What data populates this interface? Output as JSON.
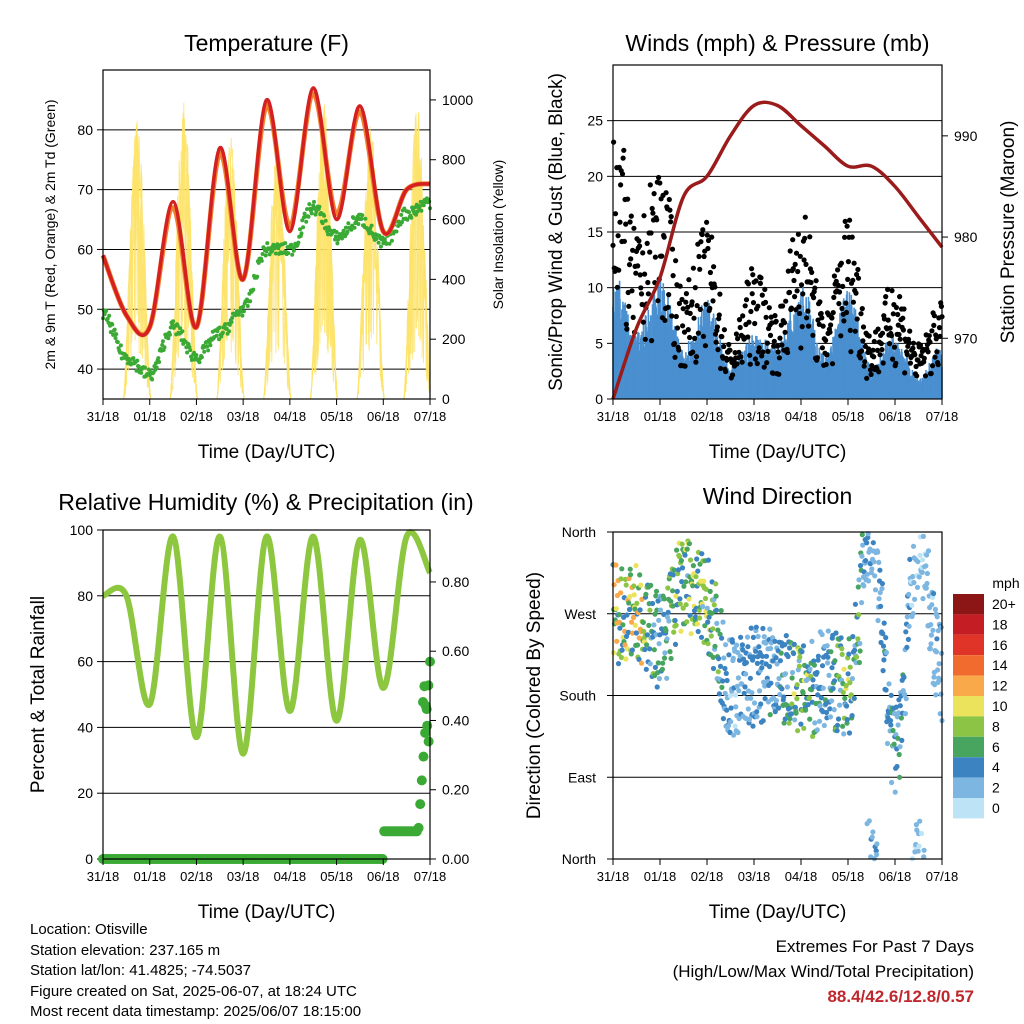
{
  "x_tick_labels": [
    "31/18",
    "01/18",
    "02/18",
    "03/18",
    "04/18",
    "05/18",
    "06/18",
    "07/18"
  ],
  "panels": {
    "temperature": {
      "title": "Temperature (F)",
      "xlabel": "Time (Day/UTC)",
      "ylabel_left": "2m & 9m T (Red, Orange) & 2m Td (Green)",
      "ylabel_right": "Solar Insolation (Yellow)",
      "left_ticks": [
        40,
        50,
        60,
        70,
        80
      ],
      "right_ticks": [
        0,
        200,
        400,
        600,
        800,
        1000
      ]
    },
    "winds": {
      "title": "Winds (mph) & Pressure (mb)",
      "xlabel": "Time (Day/UTC)",
      "ylabel_left": "Sonic/Prop Wind & Gust (Blue, Black)",
      "ylabel_right": "Station Pressure (Maroon)",
      "left_ticks": [
        0,
        5,
        10,
        15,
        20,
        25
      ],
      "right_ticks": [
        970,
        980,
        990
      ]
    },
    "humidity": {
      "title": "Relative Humidity (%) & Precipitation (in)",
      "xlabel": "Time (Day/UTC)",
      "ylabel_left": "Percent & Total Rainfall",
      "left_ticks": [
        0,
        20,
        40,
        60,
        80,
        100
      ],
      "right_ticks": [
        "0.00",
        "0.20",
        "0.40",
        "0.60",
        "0.80"
      ]
    },
    "direction": {
      "title": "Wind Direction",
      "xlabel": "Time (Day/UTC)",
      "ylabel_left": "Direction (Colored By Speed)",
      "direction_ticks": [
        "North",
        "East",
        "South",
        "West",
        "North"
      ],
      "legend_title": "mph",
      "legend_labels": [
        "20+",
        "18",
        "16",
        "14",
        "12",
        "10",
        "8",
        "6",
        "4",
        "2",
        "0"
      ],
      "legend_colors": [
        "#8c1515",
        "#c41e24",
        "#e03428",
        "#f26b2e",
        "#f9a84a",
        "#ece35c",
        "#8cc545",
        "#48a560",
        "#3c83c2",
        "#7db7e1",
        "#bde4f6"
      ]
    }
  },
  "colors": {
    "temp_2m": "#d42020",
    "temp_9m": "#f08030",
    "dewpoint": "#3aaa35",
    "insolation": "#fde36a",
    "wind_sonic": "#4a90d0",
    "gust": "#000000",
    "pressure": "#9b1b1b",
    "rh": "#8dc63f",
    "precip": "#3aaa35"
  },
  "chart_data": [
    {
      "type": "line",
      "title": "Temperature (F)",
      "xlabel": "Time (Day/UTC)",
      "x": [
        0,
        0.5,
        1,
        1.5,
        2,
        2.5,
        3,
        3.5,
        4,
        4.5,
        5,
        5.5,
        6,
        6.5,
        7
      ],
      "x_units": "days since 31/18 UTC",
      "ylim": [
        35,
        90
      ],
      "y2lim": [
        0,
        1100
      ],
      "series": [
        {
          "name": "2m T (Red)",
          "values": [
            59,
            49,
            47,
            68,
            47,
            77,
            55,
            85,
            63,
            87,
            65,
            84,
            63,
            70,
            71
          ]
        },
        {
          "name": "9m T (Orange)",
          "values": [
            59,
            49,
            47,
            67,
            47,
            76,
            55,
            84,
            64,
            86,
            66,
            83,
            63,
            70,
            71
          ]
        },
        {
          "name": "2m Td (Green)",
          "values": [
            49,
            42,
            39,
            47,
            42,
            46,
            50,
            60,
            60,
            67,
            62,
            65,
            61,
            66,
            68
          ]
        },
        {
          "name": "Solar Insolation (Yellow)",
          "axis": "right",
          "peaks": [
            950,
            1000,
            880,
            880,
            1000,
            920,
            1000,
            350
          ]
        }
      ]
    },
    {
      "type": "scatter",
      "title": "Winds (mph) & Pressure (mb)",
      "xlabel": "Time (Day/UTC)",
      "x": [
        0,
        0.5,
        1,
        1.5,
        2,
        2.5,
        3,
        3.5,
        4,
        4.5,
        5,
        5.5,
        6,
        6.5,
        7
      ],
      "ylim": [
        0,
        30
      ],
      "y2lim": [
        964,
        997
      ],
      "series": [
        {
          "name": "Gust (Black) peak",
          "values": [
            28,
            15,
            22,
            10,
            16,
            5,
            12,
            8,
            18,
            8,
            17,
            6,
            11,
            5,
            9
          ]
        },
        {
          "name": "Sonic/Prop Wind (Blue) peak",
          "values": [
            12,
            6,
            11,
            5,
            9,
            3,
            6,
            5,
            11,
            4,
            10,
            3,
            6,
            2,
            5
          ]
        },
        {
          "name": "Station Pressure (Maroon)",
          "axis": "right",
          "values": [
            964,
            971,
            976,
            984,
            986,
            990,
            993,
            993,
            991,
            989,
            987,
            987,
            985,
            982,
            979
          ]
        }
      ]
    },
    {
      "type": "line",
      "title": "Relative Humidity (%) & Precipitation (in)",
      "xlabel": "Time (Day/UTC)",
      "x": [
        0,
        0.5,
        1,
        1.5,
        2,
        2.5,
        3,
        3.5,
        4,
        4.5,
        5,
        5.5,
        6,
        6.5,
        7
      ],
      "ylim": [
        0,
        100
      ],
      "y2lim": [
        0,
        0.95
      ],
      "series": [
        {
          "name": "Relative Humidity (%)",
          "values": [
            80,
            80,
            47,
            98,
            37,
            98,
            32,
            98,
            45,
            98,
            42,
            97,
            52,
            98,
            87
          ]
        },
        {
          "name": "Total Precipitation (in)",
          "axis": "right",
          "values": [
            0,
            0,
            0,
            0,
            0,
            0,
            0,
            0,
            0,
            0,
            0,
            0,
            0.08,
            0.08,
            0.57
          ]
        }
      ]
    },
    {
      "type": "scatter",
      "title": "Wind Direction",
      "xlabel": "Time (Day/UTC)",
      "ylabel": "Direction (Colored By Speed)",
      "x": [
        0,
        0.5,
        1,
        1.5,
        2,
        2.5,
        3,
        3.5,
        4,
        4.5,
        5,
        5.5,
        6,
        6.5,
        7
      ],
      "ylim": [
        0,
        360
      ],
      "series": [
        {
          "name": "Direction (degrees)",
          "values": [
            270,
            270,
            240,
            300,
            280,
            190,
            200,
            210,
            180,
            200,
            190,
            360,
            120,
            350,
            200
          ]
        },
        {
          "name": "Speed (mph)",
          "values": [
            10,
            10,
            5,
            8,
            8,
            3,
            4,
            4,
            8,
            4,
            8,
            3,
            5,
            2,
            3
          ]
        }
      ]
    }
  ],
  "footer": {
    "location": "Location: Otisville",
    "elevation": "Station elevation: 237.165 m",
    "latlon": "Station lat/lon: 41.4825; -74.5037",
    "created": "Figure created on Sat, 2025-06-07, at 18:24 UTC",
    "recent": "Most recent data timestamp: 2025/06/07 18:15:00",
    "extremes_title": "Extremes For Past 7 Days",
    "extremes_desc": "(High/Low/Max Wind/Total Precipitation)",
    "extremes_values": "88.4/42.6/12.8/0.57"
  }
}
